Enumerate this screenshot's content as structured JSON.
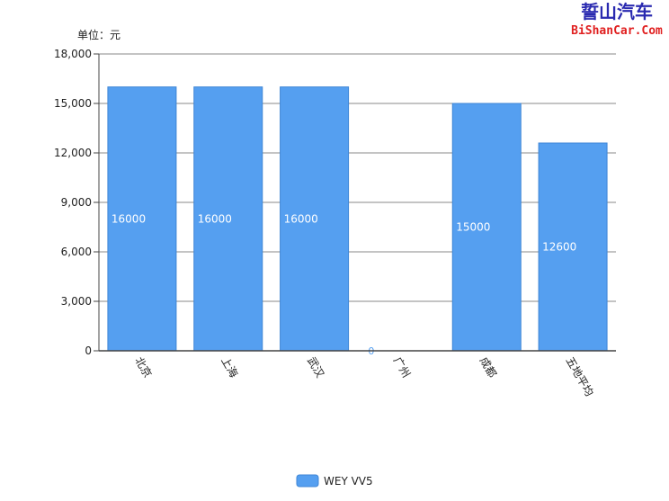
{
  "watermark": {
    "cn": "誓山汽车",
    "en": "BiShanCar.Com"
  },
  "chart_data": {
    "type": "bar",
    "unit_label": "单位：元",
    "categories": [
      "北京",
      "上海",
      "武汉",
      "广州",
      "成都",
      "五地平均"
    ],
    "series": [
      {
        "name": "WEY VV5",
        "values": [
          16000,
          16000,
          16000,
          0,
          15000,
          12600
        ],
        "color": "#559ff0"
      }
    ],
    "data_labels": [
      "16000",
      "16000",
      "16000",
      "0",
      "15000",
      "12600"
    ],
    "ylim": [
      0,
      18000
    ],
    "yticks": [
      0,
      3000,
      6000,
      9000,
      12000,
      15000,
      18000
    ],
    "ytick_labels": [
      "0",
      "3,000",
      "6,000",
      "9,000",
      "12,000",
      "15,000",
      "18,000"
    ],
    "grid": true,
    "legend_position": "bottom"
  }
}
